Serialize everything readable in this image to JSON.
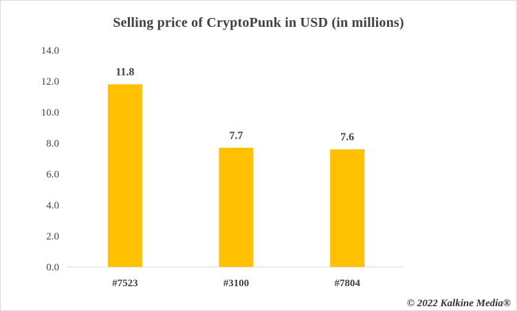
{
  "chart_data": {
    "type": "bar",
    "title": "Selling price of CryptoPunk in USD (in millions)",
    "categories": [
      "#7523",
      "#3100",
      "#7804"
    ],
    "values": [
      11.8,
      7.7,
      7.6
    ],
    "data_labels": [
      "11.8",
      "7.7",
      "7.6"
    ],
    "ylim": [
      0,
      14
    ],
    "yticks": [
      "0.0",
      "2.0",
      "4.0",
      "6.0",
      "8.0",
      "10.0",
      "12.0",
      "14.0"
    ],
    "xlabel": "",
    "ylabel": "",
    "grid": false,
    "legend": "none",
    "bar_color": "#FFC000"
  },
  "footer": {
    "credit": "© 2022 Kalkine Media®"
  }
}
